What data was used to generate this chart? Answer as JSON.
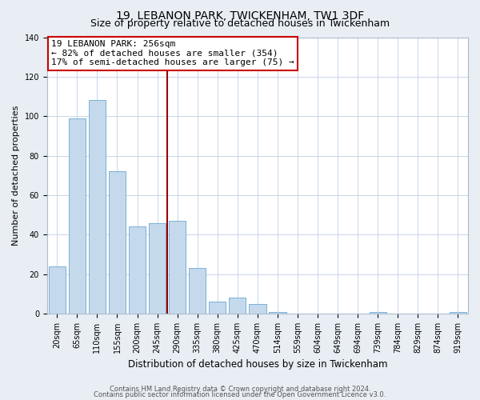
{
  "title": "19, LEBANON PARK, TWICKENHAM, TW1 3DF",
  "subtitle": "Size of property relative to detached houses in Twickenham",
  "xlabel": "Distribution of detached houses by size in Twickenham",
  "ylabel": "Number of detached properties",
  "categories": [
    "20sqm",
    "65sqm",
    "110sqm",
    "155sqm",
    "200sqm",
    "245sqm",
    "290sqm",
    "335sqm",
    "380sqm",
    "425sqm",
    "470sqm",
    "514sqm",
    "559sqm",
    "604sqm",
    "649sqm",
    "694sqm",
    "739sqm",
    "784sqm",
    "829sqm",
    "874sqm",
    "919sqm"
  ],
  "values": [
    24,
    99,
    108,
    72,
    44,
    46,
    47,
    23,
    6,
    8,
    5,
    1,
    0,
    0,
    0,
    0,
    1,
    0,
    0,
    0,
    1
  ],
  "bar_color": "#c5d9ec",
  "bar_edge_color": "#7ab0d4",
  "vline_x": 5.5,
  "vline_color": "#990000",
  "ann_line1": "19 LEBANON PARK: 256sqm",
  "ann_line2": "← 82% of detached houses are smaller (354)",
  "ann_line3": "17% of semi-detached houses are larger (75) →",
  "ann_box_facecolor": "#ffffff",
  "ann_box_edgecolor": "#cc0000",
  "ylim": [
    0,
    140
  ],
  "yticks": [
    0,
    20,
    40,
    60,
    80,
    100,
    120,
    140
  ],
  "footer1": "Contains HM Land Registry data © Crown copyright and database right 2024.",
  "footer2": "Contains public sector information licensed under the Open Government Licence v3.0.",
  "bg_color": "#e8eef4",
  "plot_bg_color": "#ffffff",
  "grid_color": "#c8d8e8",
  "title_fontsize": 10,
  "subtitle_fontsize": 9,
  "ylabel_fontsize": 8,
  "xlabel_fontsize": 8.5,
  "tick_fontsize": 7,
  "ann_fontsize": 8,
  "footer_fontsize": 6
}
